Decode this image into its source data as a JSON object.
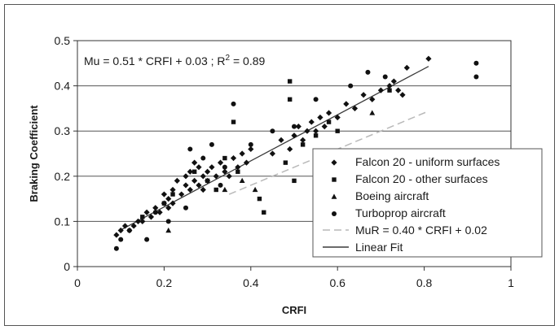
{
  "chart_data": {
    "type": "scatter",
    "title": "",
    "xlabel": "CRFI",
    "ylabel": "Braking Coefficient",
    "xlim": [
      0,
      1
    ],
    "ylim": [
      0,
      0.5
    ],
    "x_ticks": [
      "0",
      "0.2",
      "0.4",
      "0.6",
      "0.8",
      "1"
    ],
    "y_ticks": [
      "0",
      "0.1",
      "0.2",
      "0.3",
      "0.4",
      "0.5"
    ],
    "grid": "horizontal",
    "legend_position": "bottom-right",
    "annotation": {
      "prefix": "Mu = 0.51 * CRFI + 0.03 ;  R",
      "sup": "2",
      "suffix": " = 0.89"
    },
    "series": [
      {
        "name": "Falcon 20 - uniform surfaces",
        "marker": "diamond",
        "x": [
          0.09,
          0.1,
          0.11,
          0.12,
          0.13,
          0.14,
          0.15,
          0.16,
          0.17,
          0.18,
          0.19,
          0.2,
          0.2,
          0.21,
          0.21,
          0.22,
          0.22,
          0.23,
          0.24,
          0.25,
          0.25,
          0.26,
          0.26,
          0.27,
          0.27,
          0.28,
          0.28,
          0.29,
          0.29,
          0.3,
          0.3,
          0.31,
          0.32,
          0.33,
          0.34,
          0.35,
          0.36,
          0.37,
          0.38,
          0.39,
          0.4,
          0.45,
          0.47,
          0.49,
          0.5,
          0.51,
          0.52,
          0.53,
          0.54,
          0.55,
          0.56,
          0.57,
          0.58,
          0.6,
          0.62,
          0.64,
          0.66,
          0.68,
          0.7,
          0.72,
          0.73,
          0.74,
          0.75,
          0.76,
          0.81
        ],
        "y": [
          0.07,
          0.08,
          0.09,
          0.08,
          0.09,
          0.1,
          0.1,
          0.12,
          0.11,
          0.13,
          0.12,
          0.14,
          0.16,
          0.13,
          0.15,
          0.17,
          0.14,
          0.19,
          0.16,
          0.2,
          0.18,
          0.17,
          0.21,
          0.19,
          0.23,
          0.18,
          0.22,
          0.2,
          0.17,
          0.21,
          0.19,
          0.22,
          0.2,
          0.23,
          0.21,
          0.2,
          0.24,
          0.22,
          0.25,
          0.23,
          0.26,
          0.25,
          0.28,
          0.26,
          0.29,
          0.31,
          0.28,
          0.3,
          0.32,
          0.3,
          0.33,
          0.31,
          0.34,
          0.33,
          0.36,
          0.35,
          0.38,
          0.37,
          0.39,
          0.4,
          0.41,
          0.39,
          0.38,
          0.44,
          0.46
        ]
      },
      {
        "name": "Falcon 20 - other surfaces",
        "marker": "square",
        "x": [
          0.15,
          0.2,
          0.22,
          0.27,
          0.3,
          0.32,
          0.34,
          0.36,
          0.37,
          0.42,
          0.43,
          0.48,
          0.49,
          0.49,
          0.5,
          0.52,
          0.55,
          0.58,
          0.6,
          0.72
        ],
        "y": [
          0.11,
          0.14,
          0.16,
          0.21,
          0.19,
          0.17,
          0.24,
          0.32,
          0.21,
          0.15,
          0.12,
          0.23,
          0.37,
          0.41,
          0.19,
          0.27,
          0.29,
          0.32,
          0.3,
          0.39
        ]
      },
      {
        "name": "Boeing aircraft",
        "marker": "triangle",
        "x": [
          0.21,
          0.34,
          0.38,
          0.41,
          0.55,
          0.68
        ],
        "y": [
          0.08,
          0.17,
          0.19,
          0.17,
          0.23,
          0.34
        ]
      },
      {
        "name": "Turboprop aircraft",
        "marker": "circle",
        "x": [
          0.09,
          0.1,
          0.12,
          0.16,
          0.18,
          0.21,
          0.25,
          0.26,
          0.29,
          0.31,
          0.33,
          0.34,
          0.36,
          0.4,
          0.45,
          0.5,
          0.55,
          0.63,
          0.67,
          0.71,
          0.92,
          0.92
        ],
        "y": [
          0.04,
          0.06,
          0.08,
          0.06,
          0.12,
          0.1,
          0.13,
          0.26,
          0.24,
          0.27,
          0.18,
          0.22,
          0.36,
          0.27,
          0.3,
          0.31,
          0.37,
          0.4,
          0.43,
          0.42,
          0.45,
          0.42
        ]
      }
    ],
    "lines": [
      {
        "name": "MuR = 0.40 * CRFI + 0.02",
        "style": "dashed",
        "color": "#b9b9b9",
        "slope": 0.4,
        "intercept": 0.02,
        "x_range": [
          0.35,
          0.81
        ]
      },
      {
        "name": "Linear Fit",
        "style": "solid",
        "color": "#3a3a3a",
        "slope": 0.51,
        "intercept": 0.03,
        "x_range": [
          0.1,
          0.81
        ]
      }
    ]
  }
}
